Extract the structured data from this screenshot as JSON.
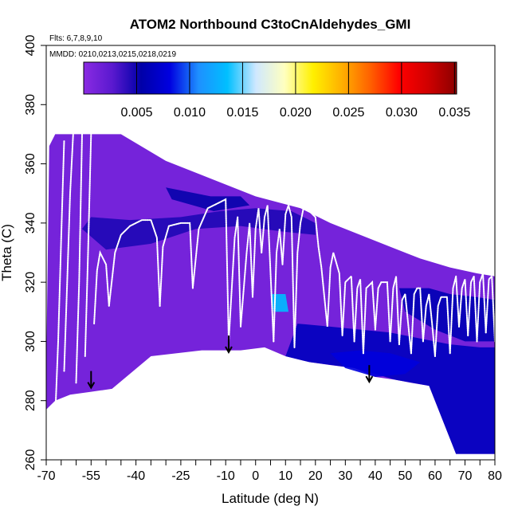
{
  "chart_data": {
    "type": "heatmap",
    "title": "ATOM2 Northbound C3toCnAldehydes_GMI",
    "flights_label": "Flts: 6,7,8,9,10",
    "mmdd_label": "MMDD: 0210,0213,0215,0218,0219",
    "xlabel": "Latitude (deg N)",
    "ylabel": "Theta (C)",
    "xlim": [
      -70,
      80
    ],
    "ylim": [
      260,
      400
    ],
    "x_ticks": [
      -70,
      -55,
      -40,
      -25,
      -10,
      0,
      10,
      20,
      30,
      40,
      50,
      60,
      70,
      80
    ],
    "y_ticks": [
      260,
      280,
      300,
      320,
      340,
      360,
      380,
      400
    ],
    "colorbar": {
      "min": 0.0,
      "max": 0.0352,
      "ticks": [
        0.005,
        0.01,
        0.015,
        0.02,
        0.025,
        0.03,
        0.035
      ],
      "tick_labels": [
        "0.005",
        "0.010",
        "0.015",
        "0.020",
        "0.025",
        "0.030",
        "0.035"
      ],
      "colors": [
        "#8a2be2",
        "#5a19cf",
        "#0000a8",
        "#0000e0",
        "#1e90ff",
        "#00bfff",
        "#cfe8ff",
        "#ffffc0",
        "#fff000",
        "#ffb000",
        "#ff6000",
        "#ff0000",
        "#d00000",
        "#8b0000"
      ]
    },
    "domain_top": [
      [
        -69,
        366
      ],
      [
        -67,
        370
      ],
      [
        -60,
        370
      ],
      [
        -45,
        370
      ],
      [
        -30,
        361
      ],
      [
        -15,
        355
      ],
      [
        0,
        349
      ],
      [
        15,
        345
      ],
      [
        25,
        340
      ],
      [
        35,
        336
      ],
      [
        45,
        332
      ],
      [
        55,
        328
      ],
      [
        65,
        325
      ],
      [
        74,
        323
      ],
      [
        80,
        322
      ]
    ],
    "domain_bottom": [
      [
        80,
        262
      ],
      [
        74,
        262
      ],
      [
        67,
        262
      ],
      [
        58,
        285
      ],
      [
        52,
        286
      ],
      [
        47,
        287
      ],
      [
        40,
        288
      ],
      [
        33,
        291
      ],
      [
        25,
        292
      ],
      [
        18,
        293
      ],
      [
        10,
        295
      ],
      [
        3,
        298
      ],
      [
        -5,
        297
      ],
      [
        -18,
        297
      ],
      [
        -35,
        295
      ],
      [
        -48,
        284
      ],
      [
        -55,
        283
      ],
      [
        -62,
        282
      ],
      [
        -67,
        280
      ],
      [
        -70,
        277
      ],
      [
        -70,
        290
      ]
    ],
    "features": [
      {
        "name": "upper-band",
        "value": 0.0045,
        "poly": [
          [
            -55,
            342
          ],
          [
            -42,
            341
          ],
          [
            -25,
            342
          ],
          [
            -12,
            344
          ],
          [
            0,
            345
          ],
          [
            12,
            344
          ],
          [
            20,
            340
          ],
          [
            20,
            336
          ],
          [
            10,
            337
          ],
          [
            -5,
            339
          ],
          [
            -20,
            338
          ],
          [
            -35,
            333
          ],
          [
            -50,
            331
          ],
          [
            -58,
            338
          ]
        ]
      },
      {
        "name": "tropopause-band",
        "value": 0.0052,
        "poly": [
          [
            -30,
            352
          ],
          [
            -15,
            349
          ],
          [
            -5,
            349
          ],
          [
            -2,
            346
          ],
          [
            -14,
            344
          ],
          [
            -28,
            348
          ]
        ]
      },
      {
        "name": "high-lat-fold",
        "value": 0.006,
        "poly": [
          [
            48,
            318
          ],
          [
            58,
            318
          ],
          [
            65,
            316
          ],
          [
            74,
            315
          ],
          [
            80,
            314
          ],
          [
            80,
            300
          ],
          [
            70,
            300
          ],
          [
            60,
            304
          ],
          [
            50,
            310
          ]
        ]
      },
      {
        "name": "lower-nh",
        "value": 0.0065,
        "poly": [
          [
            14,
            306
          ],
          [
            25,
            305
          ],
          [
            35,
            304
          ],
          [
            45,
            303
          ],
          [
            55,
            301
          ],
          [
            65,
            299
          ],
          [
            75,
            298
          ],
          [
            80,
            298
          ],
          [
            80,
            262
          ],
          [
            67,
            262
          ],
          [
            58,
            285
          ],
          [
            47,
            287
          ],
          [
            33,
            291
          ],
          [
            18,
            293
          ],
          [
            10,
            295
          ]
        ]
      },
      {
        "name": "lower-nh-core",
        "value": 0.008,
        "poly": [
          [
            25,
            296
          ],
          [
            35,
            297
          ],
          [
            45,
            296
          ],
          [
            55,
            293
          ],
          [
            50,
            289
          ],
          [
            40,
            288
          ],
          [
            30,
            291
          ]
        ]
      },
      {
        "name": "bright-spot",
        "value": 0.0135,
        "poly": [
          [
            5,
            316
          ],
          [
            10,
            316
          ],
          [
            11,
            310
          ],
          [
            6,
            310
          ]
        ]
      }
    ],
    "arrows": [
      [
        -55,
        290
      ],
      [
        -9,
        302
      ],
      [
        38,
        292
      ]
    ],
    "flight_tracks": [
      [
        [
          -67,
          275
        ],
        [
          -66,
          300
        ],
        [
          -65,
          335
        ],
        [
          -64,
          368
        ]
      ],
      [
        [
          -64,
          290
        ],
        [
          -63,
          320
        ],
        [
          -62,
          350
        ],
        [
          -61,
          370
        ]
      ],
      [
        [
          -60,
          286
        ],
        [
          -59,
          320
        ],
        [
          -58,
          370
        ]
      ],
      [
        [
          -57,
          295
        ],
        [
          -56,
          330
        ],
        [
          -55,
          370
        ]
      ],
      [
        [
          -54,
          306
        ],
        [
          -53,
          324
        ],
        [
          -52,
          330
        ],
        [
          -50,
          326
        ],
        [
          -49,
          312
        ]
      ],
      [
        [
          -49,
          312
        ],
        [
          -47,
          330
        ],
        [
          -45,
          336
        ],
        [
          -42,
          339
        ],
        [
          -38,
          341
        ],
        [
          -35,
          341
        ],
        [
          -33,
          335
        ],
        [
          -32,
          312
        ]
      ],
      [
        [
          -32,
          312
        ],
        [
          -31,
          332
        ],
        [
          -29,
          339
        ],
        [
          -25,
          340
        ],
        [
          -22,
          340
        ],
        [
          -21,
          318
        ]
      ],
      [
        [
          -21,
          318
        ],
        [
          -19,
          338
        ],
        [
          -16,
          345
        ],
        [
          -12,
          347
        ],
        [
          -10,
          348
        ],
        [
          -9,
          300
        ]
      ],
      [
        [
          -9,
          300
        ],
        [
          -7,
          335
        ],
        [
          -6,
          342
        ],
        [
          -5,
          305
        ]
      ],
      [
        [
          -5,
          305
        ],
        [
          -3,
          330
        ],
        [
          -2,
          340
        ],
        [
          -1,
          315
        ]
      ],
      [
        [
          -1,
          315
        ],
        [
          0,
          338
        ],
        [
          1,
          345
        ],
        [
          2,
          330
        ]
      ],
      [
        [
          2,
          330
        ],
        [
          3,
          342
        ],
        [
          4,
          346
        ],
        [
          6,
          300
        ]
      ],
      [
        [
          6,
          300
        ],
        [
          7,
          330
        ],
        [
          8,
          338
        ],
        [
          9,
          326
        ]
      ],
      [
        [
          9,
          326
        ],
        [
          10,
          343
        ],
        [
          11,
          346
        ],
        [
          12,
          342
        ],
        [
          13,
          298
        ]
      ],
      [
        [
          13,
          298
        ],
        [
          14,
          330
        ],
        [
          15,
          340
        ],
        [
          16,
          345
        ],
        [
          18,
          344
        ],
        [
          20,
          342
        ],
        [
          21,
          332
        ]
      ],
      [
        [
          21,
          332
        ],
        [
          22,
          325
        ],
        [
          24,
          305
        ],
        [
          25,
          325
        ]
      ],
      [
        [
          25,
          325
        ],
        [
          26,
          330
        ],
        [
          28,
          323
        ],
        [
          29,
          302
        ]
      ],
      [
        [
          29,
          302
        ],
        [
          30,
          320
        ],
        [
          32,
          322
        ],
        [
          33,
          300
        ]
      ],
      [
        [
          33,
          300
        ],
        [
          34,
          318
        ],
        [
          35,
          321
        ],
        [
          36,
          296
        ]
      ],
      [
        [
          36,
          296
        ],
        [
          37,
          318
        ],
        [
          39,
          320
        ],
        [
          40,
          304
        ]
      ],
      [
        [
          40,
          304
        ],
        [
          41,
          318
        ],
        [
          42,
          320
        ],
        [
          44,
          320
        ],
        [
          45,
          300
        ]
      ],
      [
        [
          45,
          300
        ],
        [
          46,
          318
        ],
        [
          47,
          322
        ],
        [
          48,
          299
        ]
      ],
      [
        [
          48,
          299
        ],
        [
          49,
          314
        ],
        [
          50,
          316
        ],
        [
          52,
          296
        ]
      ],
      [
        [
          52,
          296
        ],
        [
          53,
          316
        ],
        [
          54,
          318
        ],
        [
          55,
          318
        ],
        [
          56,
          300
        ]
      ],
      [
        [
          56,
          300
        ],
        [
          57,
          312
        ],
        [
          58,
          316
        ],
        [
          59,
          306
        ],
        [
          60,
          295
        ]
      ],
      [
        [
          60,
          295
        ],
        [
          61,
          312
        ],
        [
          62,
          315
        ],
        [
          64,
          315
        ],
        [
          65,
          296
        ]
      ],
      [
        [
          65,
          296
        ],
        [
          66,
          318
        ],
        [
          67,
          322
        ],
        [
          68,
          305
        ]
      ],
      [
        [
          68,
          305
        ],
        [
          69,
          318
        ],
        [
          70,
          321
        ],
        [
          71,
          302
        ]
      ],
      [
        [
          71,
          302
        ],
        [
          72,
          320
        ],
        [
          73,
          322
        ],
        [
          74,
          300
        ]
      ],
      [
        [
          74,
          300
        ],
        [
          75,
          320
        ],
        [
          76,
          323
        ],
        [
          77,
          303
        ]
      ],
      [
        [
          77,
          303
        ],
        [
          78,
          321
        ],
        [
          79,
          322
        ],
        [
          80,
          300
        ]
      ]
    ]
  }
}
